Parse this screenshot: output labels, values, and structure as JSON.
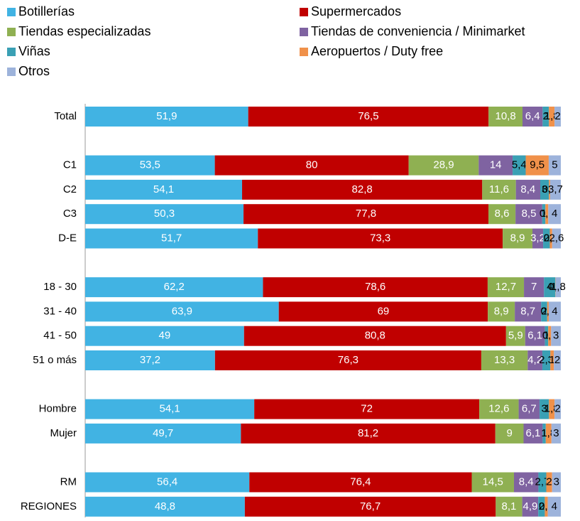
{
  "chart_data": {
    "type": "bar_stacked_horizontal_percent",
    "categories": [
      "Total",
      null,
      "C1",
      "C2",
      "C3",
      "D-E",
      null,
      "18 - 30",
      "31 - 40",
      "41 - 50",
      "51 o más",
      null,
      "Hombre",
      "Mujer",
      null,
      "RM",
      "REGIONES"
    ],
    "series": [
      {
        "name": "Botillerías",
        "color": "#41b3e3",
        "values": [
          51.9,
          null,
          53.5,
          54.1,
          50.3,
          51.7,
          null,
          62.2,
          63.9,
          49,
          37.2,
          null,
          54.1,
          49.7,
          null,
          56.4,
          48.8
        ],
        "value_labels": [
          "51,9",
          null,
          "53,5",
          "54,1",
          "50,3",
          "51,7",
          null,
          "62,2",
          "63,9",
          "49",
          "37,2",
          null,
          "54,1",
          "49,7",
          null,
          "56,4",
          "48,8"
        ]
      },
      {
        "name": "Supermercados",
        "color": "#c00000",
        "values": [
          76.5,
          null,
          80,
          82.8,
          77.8,
          73.3,
          null,
          78.6,
          69,
          80.8,
          76.3,
          null,
          72,
          81.2,
          null,
          76.4,
          76.7
        ],
        "value_labels": [
          "76,5",
          null,
          "80",
          "82,8",
          "77,8",
          "73,3",
          null,
          "78,6",
          "69",
          "80,8",
          "76,3",
          null,
          "72",
          "81,2",
          null,
          "76,4",
          "76,7"
        ]
      },
      {
        "name": "Tiendas especializadas",
        "color": "#8fb052",
        "values": [
          10.8,
          null,
          28.9,
          11.6,
          8.6,
          8.9,
          null,
          12.7,
          8.9,
          5.9,
          13.3,
          null,
          12.6,
          9,
          null,
          14.5,
          8.1
        ],
        "value_labels": [
          "10,8",
          null,
          "28,9",
          "11,6",
          "8,6",
          "8,9",
          null,
          "12,7",
          "8,9",
          "5,9",
          "13,3",
          null,
          "12,6",
          "9",
          null,
          "14,5",
          "8,1"
        ]
      },
      {
        "name": "Tiendas de conveniencia / Minimarket",
        "color": "#7f63a1",
        "values": [
          6.4,
          null,
          14,
          8.4,
          8.5,
          3.2,
          null,
          7,
          8.7,
          6.1,
          4.2,
          null,
          6.7,
          6.1,
          null,
          8.4,
          4.9
        ],
        "value_labels": [
          "6,4",
          null,
          "14",
          "8,4",
          "8,5",
          "3,2",
          null,
          "7",
          "8,7",
          "6,1",
          "4,2",
          null,
          "6,7",
          "6,1",
          null,
          "8,4",
          "4,9"
        ]
      },
      {
        "name": "Viñas",
        "color": "#3aa0b4",
        "values": [
          2,
          null,
          5.4,
          3,
          1,
          2,
          null,
          4,
          2,
          1,
          2.3,
          null,
          3,
          1,
          null,
          2.7,
          2
        ],
        "value_labels": [
          "2",
          null,
          "5,4",
          "3",
          "1",
          "2",
          null,
          "4",
          "2",
          "1",
          "2,3",
          null,
          "3",
          "1",
          null,
          "2,7",
          "2"
        ]
      },
      {
        "name": "Aeropuertos / Duty free",
        "color": "#f0914a",
        "values": [
          1.8,
          null,
          9.5,
          0.4,
          0.9,
          0.7,
          null,
          0.1,
          0.5,
          0.9,
          1,
          null,
          1.8,
          1.8,
          null,
          2,
          0.9
        ],
        "value_labels": [
          "1,8",
          null,
          "9,5",
          "0,4",
          "0,9",
          "0,7",
          null,
          "0,1",
          "0,5",
          "0,9",
          "1",
          null,
          "1,8",
          "1,8",
          null,
          "2",
          "0,9"
        ]
      },
      {
        "name": "Otros",
        "color": "#9db3db",
        "values": [
          2,
          null,
          5,
          3.7,
          4,
          2.6,
          null,
          1.8,
          4,
          3,
          2,
          null,
          2,
          3,
          null,
          3,
          4
        ],
        "value_labels": [
          "2",
          null,
          "5",
          "3,7",
          "4",
          "2,6",
          null,
          "1,8",
          "4",
          "3",
          "2",
          null,
          "2",
          "3",
          null,
          "3",
          "4"
        ]
      }
    ]
  }
}
